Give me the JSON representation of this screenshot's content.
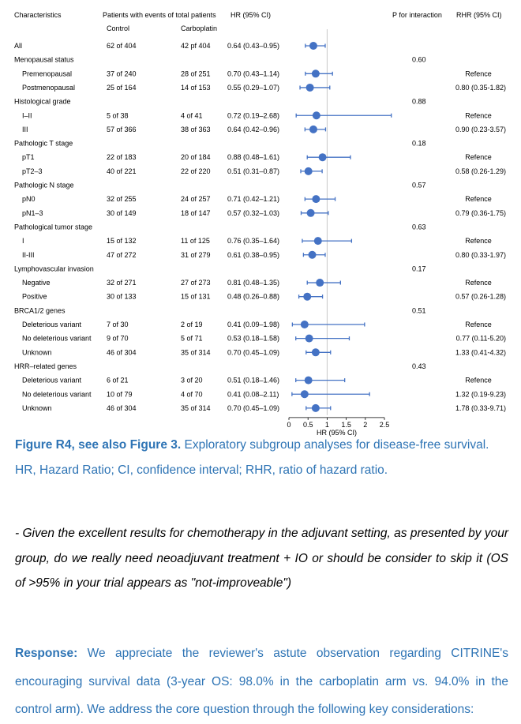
{
  "chart_data": {
    "type": "forest",
    "column_headers": {
      "characteristics": "Characteristics",
      "events": "Patients with events of total patients",
      "control": "Control",
      "carboplatin": "Carboplatin",
      "hr": "HR (95% CI)",
      "p_interaction": "P for interaction",
      "rhr": "RHR (95% CI)"
    },
    "xaxis": {
      "label": "HR (95% CI)",
      "ticks": [
        0,
        0.5,
        1,
        1.5,
        2,
        2.5
      ],
      "tick_labels": [
        "0",
        "0.5",
        "1",
        "1.5",
        "2",
        "2.5"
      ],
      "range": [
        0,
        2.5
      ],
      "reference_line": 1
    },
    "rows": [
      {
        "label": "All",
        "indent": false,
        "control": "62 of 404",
        "carbo": "42 pf 404",
        "hr_text": "0.64 (0.43–0.95)",
        "hr": 0.64,
        "lo": 0.43,
        "hi": 0.95
      },
      {
        "label": "Menopausal status",
        "indent": false,
        "p": "0.60"
      },
      {
        "label": "Premenopausal",
        "indent": true,
        "control": "37 of 240",
        "carbo": "28 of 251",
        "hr_text": "0.70 (0.43–1.14)",
        "hr": 0.7,
        "lo": 0.43,
        "hi": 1.14,
        "rhr": "Refence"
      },
      {
        "label": "Postmenopausal",
        "indent": true,
        "control": "25 of 164",
        "carbo": "14 of 153",
        "hr_text": "0.55 (0.29–1.07)",
        "hr": 0.55,
        "lo": 0.29,
        "hi": 1.07,
        "rhr": "0.80 (0.35-1.82)"
      },
      {
        "label": "Histological grade",
        "indent": false,
        "p": "0.88"
      },
      {
        "label": "I–II",
        "indent": true,
        "control": "5 of 38",
        "carbo": "4 of 41",
        "hr_text": "0.72 (0.19–2.68)",
        "hr": 0.72,
        "lo": 0.19,
        "hi": 2.68,
        "rhr": "Refence"
      },
      {
        "label": "III",
        "indent": true,
        "control": "57 of 366",
        "carbo": "38 of 363",
        "hr_text": "0.64 (0.42–0.96)",
        "hr": 0.64,
        "lo": 0.42,
        "hi": 0.96,
        "rhr": "0.90 (0.23-3.57)"
      },
      {
        "label": "Pathologic T stage",
        "indent": false,
        "p": "0.18"
      },
      {
        "label": "pT1",
        "indent": true,
        "control": "22 of 183",
        "carbo": "20 of 184",
        "hr_text": "0.88 (0.48–1.61)",
        "hr": 0.88,
        "lo": 0.48,
        "hi": 1.61,
        "rhr": "Refence"
      },
      {
        "label": "pT2–3",
        "indent": true,
        "control": "40 of 221",
        "carbo": "22 of 220",
        "hr_text": "0.51 (0.31–0.87)",
        "hr": 0.51,
        "lo": 0.31,
        "hi": 0.87,
        "rhr": "0.58 (0.26-1.29)"
      },
      {
        "label": "Pathologic N stage",
        "indent": false,
        "p": "0.57"
      },
      {
        "label": "pN0",
        "indent": true,
        "control": "32 of 255",
        "carbo": "24 of 257",
        "hr_text": "0.71 (0.42–1.21)",
        "hr": 0.71,
        "lo": 0.42,
        "hi": 1.21,
        "rhr": "Refence"
      },
      {
        "label": "pN1–3",
        "indent": true,
        "control": "30 of 149",
        "carbo": "18 of 147",
        "hr_text": "0.57 (0.32–1.03)",
        "hr": 0.57,
        "lo": 0.32,
        "hi": 1.03,
        "rhr": "0.79 (0.36-1.75)"
      },
      {
        "label": "Pathological tumor stage",
        "indent": false,
        "p": "0.63"
      },
      {
        "label": "I",
        "indent": true,
        "control": "15 of 132",
        "carbo": "11 of 125",
        "hr_text": "0.76 (0.35–1.64)",
        "hr": 0.76,
        "lo": 0.35,
        "hi": 1.64,
        "rhr": "Refence"
      },
      {
        "label": "II-III",
        "indent": true,
        "control": "47 of 272",
        "carbo": "31 of 279",
        "hr_text": "0.61 (0.38–0.95)",
        "hr": 0.61,
        "lo": 0.38,
        "hi": 0.95,
        "rhr": "0.80 (0.33-1.97)"
      },
      {
        "label": "Lymphovascular invasion",
        "indent": false,
        "p": "0.17"
      },
      {
        "label": "Negative",
        "indent": true,
        "control": "32 of 271",
        "carbo": "27 of 273",
        "hr_text": "0.81 (0.48–1.35)",
        "hr": 0.81,
        "lo": 0.48,
        "hi": 1.35,
        "rhr": "Refence"
      },
      {
        "label": "Positive",
        "indent": true,
        "control": "30 of 133",
        "carbo": "15 of 131",
        "hr_text": "0.48 (0.26–0.88)",
        "hr": 0.48,
        "lo": 0.26,
        "hi": 0.88,
        "rhr": "0.57 (0.26-1.28)"
      },
      {
        "label": "BRCA1/2 genes",
        "indent": false,
        "p": "0.51"
      },
      {
        "label": "Deleterious variant",
        "indent": true,
        "control": "7 of 30",
        "carbo": "2 of 19",
        "hr_text": "0.41 (0.09–1.98)",
        "hr": 0.41,
        "lo": 0.09,
        "hi": 1.98,
        "rhr": "Refence"
      },
      {
        "label": "No deleterious variant",
        "indent": true,
        "control": "9 of 70",
        "carbo": "5 of 71",
        "hr_text": "0.53 (0.18–1.58)",
        "hr": 0.53,
        "lo": 0.18,
        "hi": 1.58,
        "rhr": "0.77 (0.11-5.20)"
      },
      {
        "label": "Unknown",
        "indent": true,
        "control": "46 of 304",
        "carbo": "35 of 314",
        "hr_text": "0.70 (0.45–1.09)",
        "hr": 0.7,
        "lo": 0.45,
        "hi": 1.09,
        "rhr": "1.33 (0.41-4.32)"
      },
      {
        "label": "HRR–related genes",
        "indent": false,
        "p": "0.43"
      },
      {
        "label": "Deleterious variant",
        "indent": true,
        "control": "6 of 21",
        "carbo": "3 of 20",
        "hr_text": "0.51 (0.18–1.46)",
        "hr": 0.51,
        "lo": 0.18,
        "hi": 1.46,
        "rhr": "Refence"
      },
      {
        "label": "No deleterious variant",
        "indent": true,
        "control": "10 of 79",
        "carbo": "4 of 70",
        "hr_text": "0.41 (0.08–2.11)",
        "hr": 0.41,
        "lo": 0.08,
        "hi": 2.11,
        "rhr": "1.32 (0.19-9.23)"
      },
      {
        "label": "Unknown",
        "indent": true,
        "control": "46 of 304",
        "carbo": "35 of 314",
        "hr_text": "0.70 (0.45–1.09)",
        "hr": 0.7,
        "lo": 0.45,
        "hi": 1.09,
        "rhr": "1.78 (0.33-9.71)"
      }
    ],
    "colors": {
      "marker": "#4472c4",
      "reference_line": "#c8c8c8",
      "text": "#000000"
    }
  },
  "caption": {
    "label": "Figure R4, see also Figure 3.",
    "text": " Exploratory subgroup analyses for disease-free survival. HR, Hazard Ratio; CI, confidence interval; RHR, ratio of hazard ratio."
  },
  "question": "- Given the excellent results for chemotherapy in the adjuvant setting, as presented by your group, do we really need neoadjuvant treatment + IO or should be consider to skip it (OS of >95% in your trial appears as \"not-improveable\")",
  "response": {
    "label": "Response:",
    "text": " We appreciate the reviewer's astute observation regarding CITRINE's encouraging survival data (3-year OS: 98.0% in the carboplatin arm vs. 94.0% in the control arm). We address the core question through the following key considerations:"
  },
  "accent_color": "#2e74b5"
}
